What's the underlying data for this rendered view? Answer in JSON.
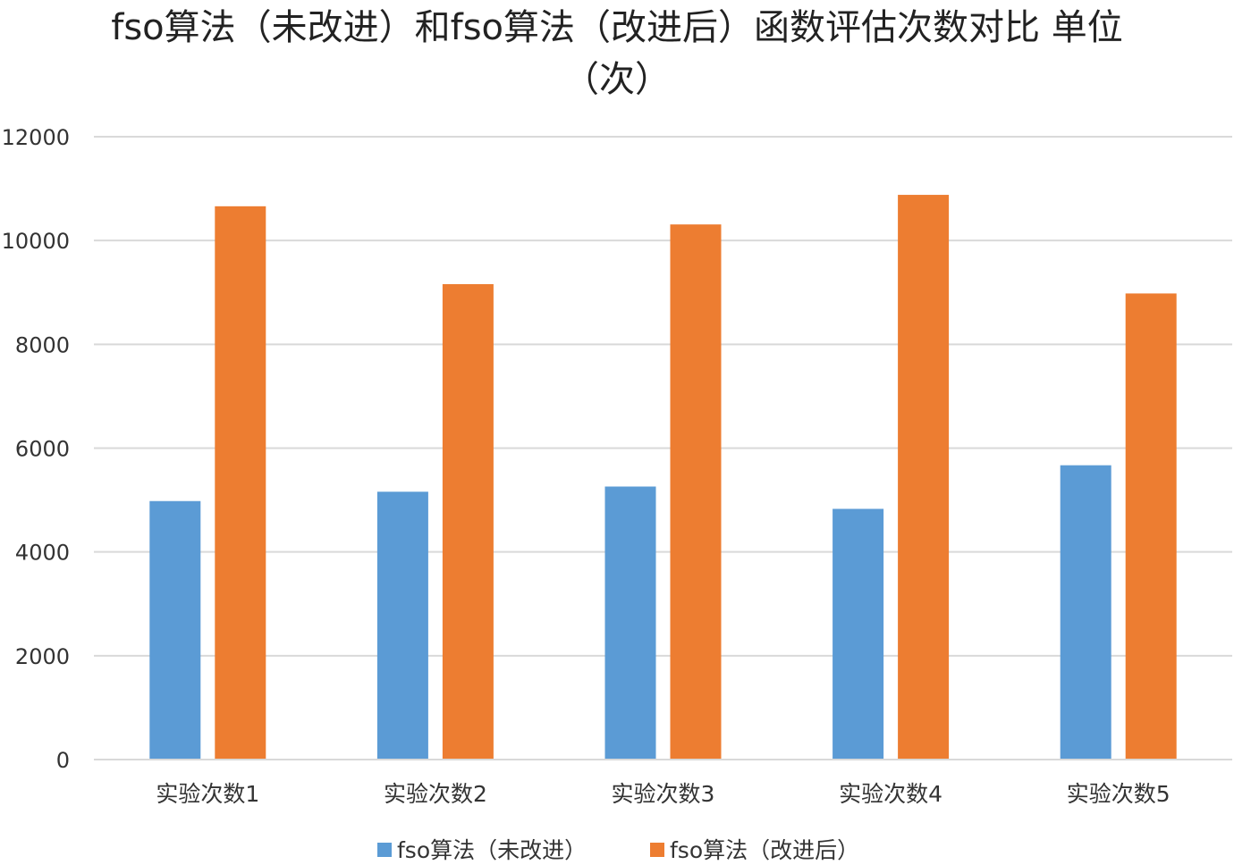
{
  "chart_data": {
    "type": "bar",
    "title": "fso算法（未改进）和fso算法（改进后）函数评估次数对比 单位（次）",
    "xlabel": "",
    "ylabel": "",
    "categories": [
      "实验次数1",
      "实验次数2",
      "实验次数3",
      "实验次数4",
      "实验次数5"
    ],
    "series": [
      {
        "name": "fso算法（未改进）",
        "color": "#5B9BD5",
        "values": [
          4980,
          5160,
          5260,
          4830,
          5670
        ]
      },
      {
        "name": "fso算法（改进后）",
        "color": "#ED7D31",
        "values": [
          10660,
          9160,
          10310,
          10880,
          8980
        ]
      }
    ],
    "ylim": [
      0,
      12000
    ],
    "yticks": [
      0,
      2000,
      4000,
      6000,
      8000,
      10000,
      12000
    ],
    "grid": true,
    "gridColor": "#D9D9D9",
    "legend_position": "bottom"
  }
}
